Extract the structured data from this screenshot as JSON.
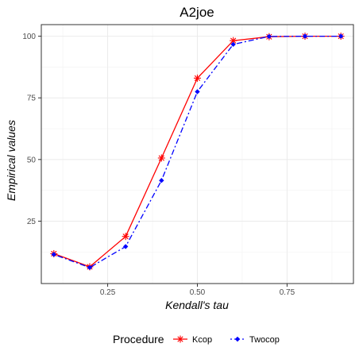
{
  "chart_data": {
    "type": "line",
    "title": "A2joe",
    "xlabel": "Kendall's tau",
    "ylabel": "Empirical values",
    "xlim": [
      0.065,
      0.935
    ],
    "ylim": [
      -0.3,
      104.7
    ],
    "x_ticks": [
      0.25,
      0.5,
      0.75
    ],
    "x_tick_labels": [
      "0.25",
      "0.50",
      "0.75"
    ],
    "y_ticks": [
      25,
      50,
      75,
      100
    ],
    "y_tick_labels": [
      "25",
      "50",
      "75",
      "100"
    ],
    "grid": true,
    "legend": {
      "title": "Procedure",
      "position": "bottom"
    },
    "x": [
      0.1,
      0.2,
      0.3,
      0.4,
      0.5,
      0.6,
      0.7,
      0.8,
      0.9
    ],
    "series": [
      {
        "name": "Kcop",
        "color": "#ff0000",
        "marker": "asterisk",
        "line": "solid",
        "values": [
          11.8,
          6.5,
          18.8,
          50.6,
          83.0,
          98.2,
          99.8,
          100,
          100
        ]
      },
      {
        "name": "Twocop",
        "color": "#0000ff",
        "marker": "diamond",
        "line": "dotdash",
        "values": [
          11.5,
          6.2,
          14.7,
          41.5,
          77.5,
          96.7,
          99.9,
          100,
          100
        ]
      }
    ]
  }
}
